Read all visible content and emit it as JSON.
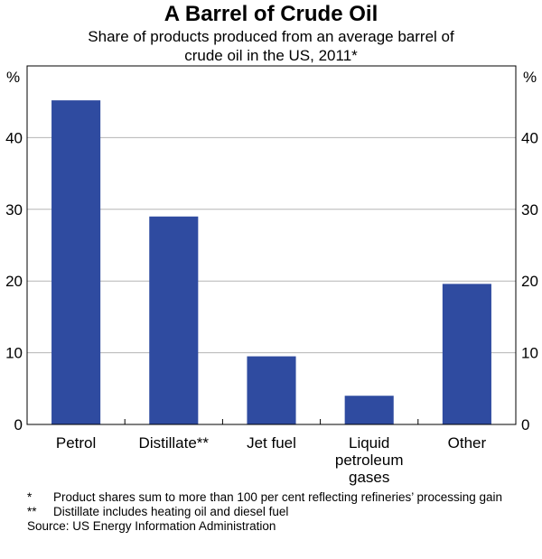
{
  "chart_data": {
    "type": "bar",
    "title": "A Barrel of Crude Oil",
    "subtitle_lines": [
      "Share of products produced from an average barrel of",
      "crude oil in the US, 2011*"
    ],
    "unit_left": "%",
    "unit_right": "%",
    "categories": [
      [
        "Petrol"
      ],
      [
        "Distillate**"
      ],
      [
        "Jet fuel"
      ],
      [
        "Liquid",
        "petroleum",
        "gases"
      ],
      [
        "Other"
      ]
    ],
    "values": [
      45.2,
      29.0,
      9.5,
      4.0,
      19.6
    ],
    "ylim": [
      0,
      50
    ],
    "yticks": [
      0,
      10,
      20,
      30,
      40
    ],
    "grid": true,
    "bar_color": "#2f4ba0"
  },
  "notes": [
    {
      "mark": "*",
      "text": "Product shares sum to more than 100 per cent reflecting refineries’ processing gain"
    },
    {
      "mark": "**",
      "text": "Distillate includes heating oil and diesel fuel"
    }
  ],
  "source": "Source: US Energy Information Administration"
}
